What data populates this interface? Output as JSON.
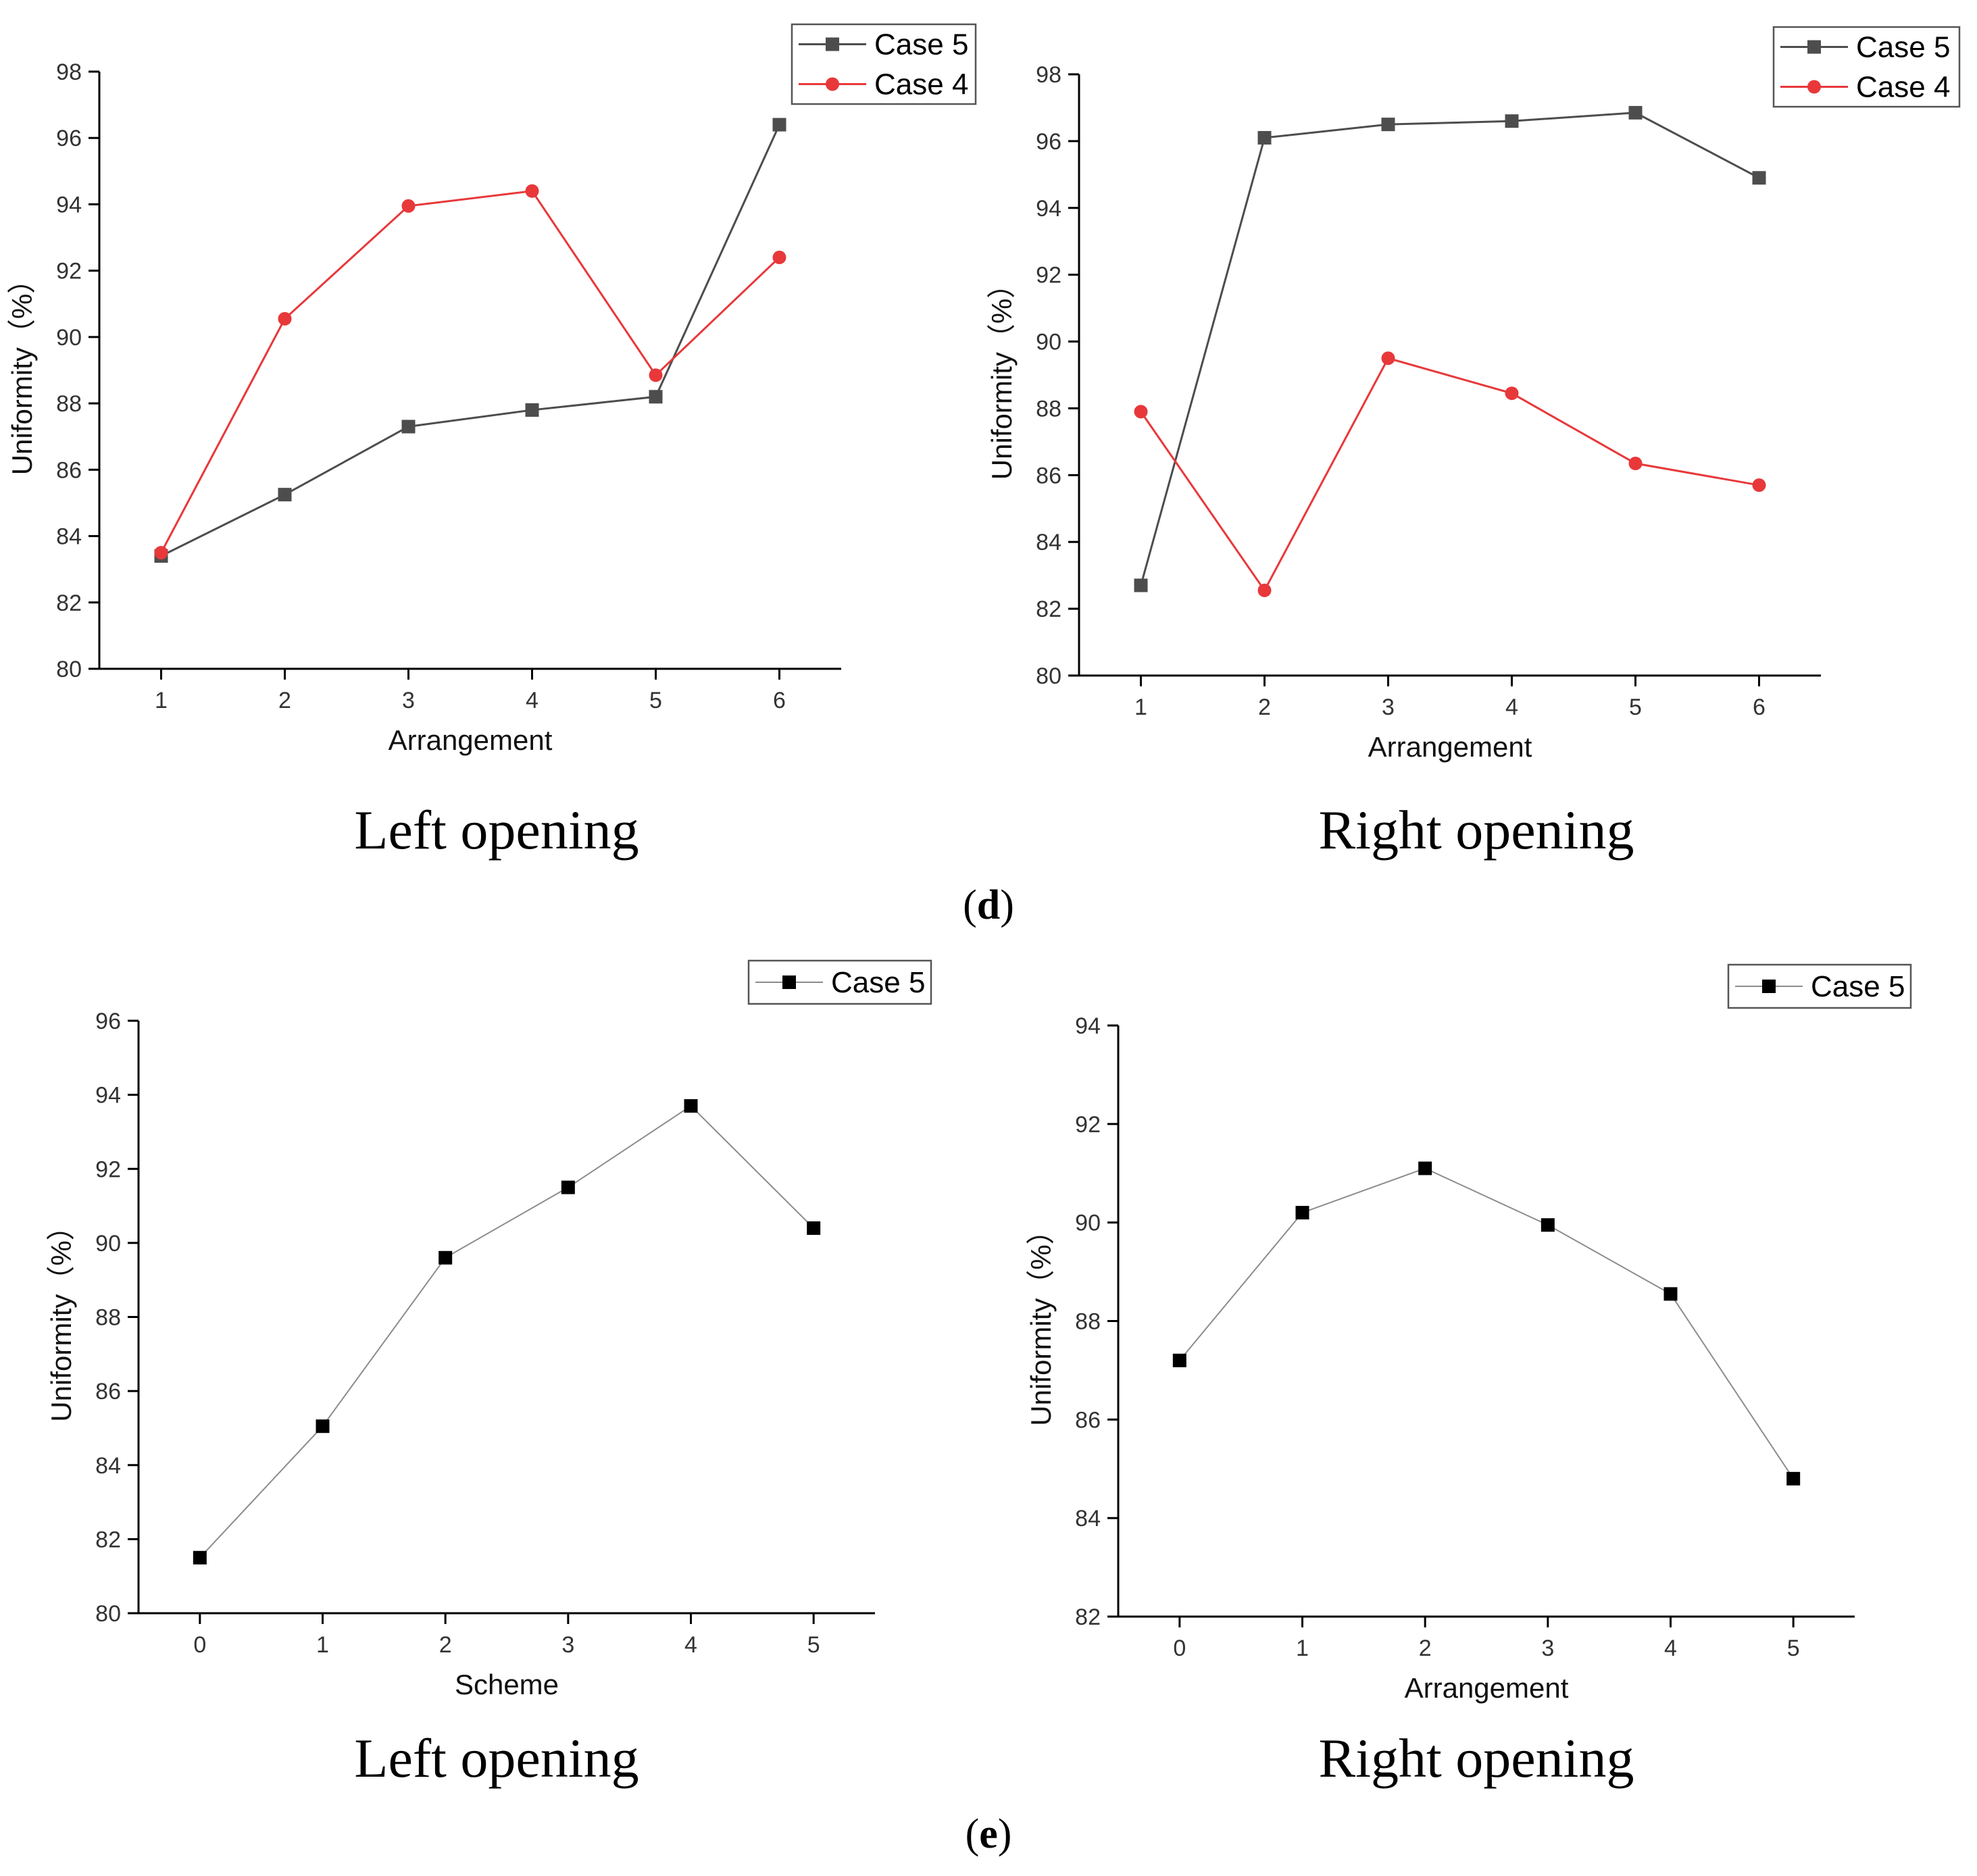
{
  "figure": {
    "panel_d_label": [
      "(",
      "d",
      ")"
    ],
    "panel_e_label": [
      "(",
      "e",
      ")"
    ]
  },
  "chart_data": [
    {
      "id": "d-left",
      "type": "line",
      "caption": "Left opening",
      "xlabel": "Arrangement",
      "ylabel": "Uniformity（%）",
      "x": [
        1,
        2,
        3,
        4,
        5,
        6
      ],
      "xlim": [
        0.5,
        6.5
      ],
      "ylim": [
        80,
        98
      ],
      "yticks": [
        80,
        82,
        84,
        86,
        88,
        90,
        92,
        94,
        96,
        98
      ],
      "legend": "top-right",
      "series": [
        {
          "name": "Case 5",
          "color": "#4d4d4d",
          "marker": "square",
          "values": [
            83.4,
            85.25,
            87.3,
            87.8,
            88.2,
            96.4
          ]
        },
        {
          "name": "Case 4",
          "color": "#e8383a",
          "marker": "circle",
          "values": [
            83.5,
            90.55,
            93.95,
            94.4,
            88.85,
            92.4
          ]
        }
      ]
    },
    {
      "id": "d-right",
      "type": "line",
      "caption": "Right opening",
      "xlabel": "Arrangement",
      "ylabel": "Uniformity（%）",
      "x": [
        1,
        2,
        3,
        4,
        5,
        6
      ],
      "xlim": [
        0.5,
        6.5
      ],
      "ylim": [
        80,
        98
      ],
      "yticks": [
        80,
        82,
        84,
        86,
        88,
        90,
        92,
        94,
        96,
        98
      ],
      "legend": "top-right",
      "series": [
        {
          "name": "Case 5",
          "color": "#4d4d4d",
          "marker": "square",
          "values": [
            82.7,
            96.1,
            96.5,
            96.6,
            96.85,
            94.9
          ]
        },
        {
          "name": "Case 4",
          "color": "#e8383a",
          "marker": "circle",
          "values": [
            87.9,
            82.55,
            89.5,
            88.45,
            86.35,
            85.7
          ]
        }
      ]
    },
    {
      "id": "e-left",
      "type": "line",
      "caption": "Left opening",
      "xlabel": "Scheme",
      "ylabel": "Uniformity（%）",
      "x": [
        0,
        1,
        2,
        3,
        4,
        5
      ],
      "xlim": [
        -0.5,
        5.5
      ],
      "ylim": [
        80,
        96
      ],
      "yticks": [
        80,
        82,
        84,
        86,
        88,
        90,
        92,
        94,
        96
      ],
      "legend": "top-right",
      "series": [
        {
          "name": "Case 5",
          "color": "#000000",
          "line_color": "#8c8c8c",
          "marker": "square",
          "values": [
            81.5,
            85.05,
            89.6,
            91.5,
            93.7,
            90.4
          ]
        }
      ]
    },
    {
      "id": "e-right",
      "type": "line",
      "caption": "Right opening",
      "xlabel": "Arrangement",
      "ylabel": "Uniformity（%）",
      "x": [
        0,
        1,
        2,
        3,
        4,
        5
      ],
      "xlim": [
        -0.5,
        5.5
      ],
      "ylim": [
        82,
        94
      ],
      "yticks": [
        82,
        84,
        86,
        88,
        90,
        92,
        94
      ],
      "legend": "top-right",
      "series": [
        {
          "name": "Case 5",
          "color": "#000000",
          "line_color": "#8c8c8c",
          "marker": "square",
          "values": [
            87.2,
            90.2,
            91.1,
            89.95,
            88.55,
            84.8
          ]
        }
      ]
    }
  ]
}
